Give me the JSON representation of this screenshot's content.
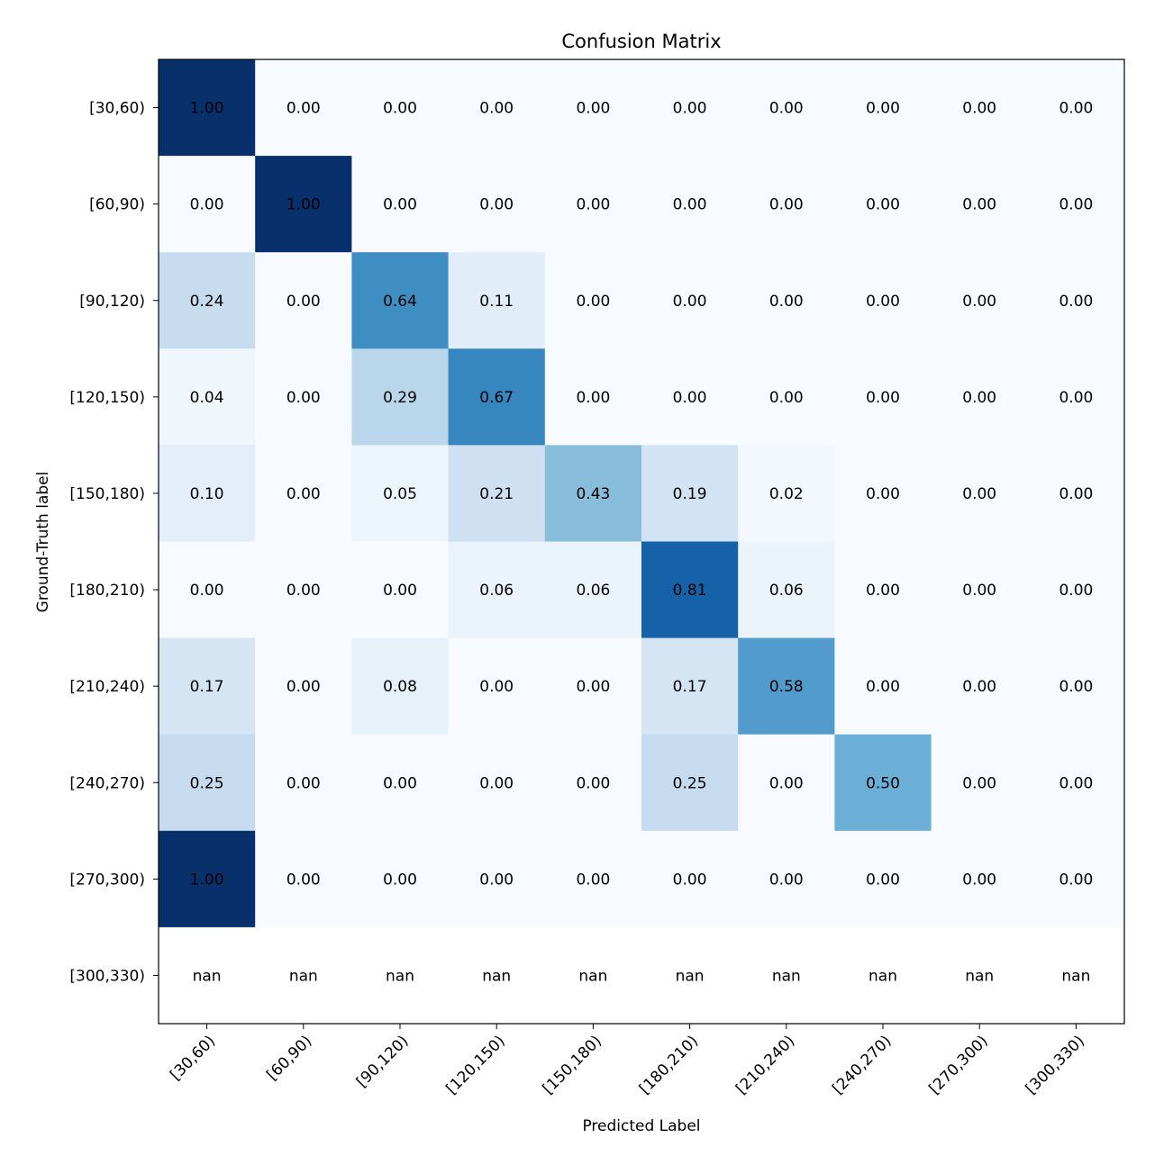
{
  "chart_data": {
    "type": "heatmap",
    "title": "Confusion Matrix",
    "xlabel": "Predicted Label",
    "ylabel": "Ground-Truth label",
    "x_categories": [
      "[30,60)",
      "[60,90)",
      "[90,120)",
      "[120,150)",
      "[150,180)",
      "[180,210)",
      "[210,240)",
      "[240,270)",
      "[270,300)",
      "[300,330)"
    ],
    "y_categories": [
      "[30,60)",
      "[60,90)",
      "[90,120)",
      "[120,150)",
      "[150,180)",
      "[180,210)",
      "[210,240)",
      "[240,270)",
      "[270,300)",
      "[300,330)"
    ],
    "values": [
      [
        "1.00",
        "0.00",
        "0.00",
        "0.00",
        "0.00",
        "0.00",
        "0.00",
        "0.00",
        "0.00",
        "0.00"
      ],
      [
        "0.00",
        "1.00",
        "0.00",
        "0.00",
        "0.00",
        "0.00",
        "0.00",
        "0.00",
        "0.00",
        "0.00"
      ],
      [
        "0.24",
        "0.00",
        "0.64",
        "0.11",
        "0.00",
        "0.00",
        "0.00",
        "0.00",
        "0.00",
        "0.00"
      ],
      [
        "0.04",
        "0.00",
        "0.29",
        "0.67",
        "0.00",
        "0.00",
        "0.00",
        "0.00",
        "0.00",
        "0.00"
      ],
      [
        "0.10",
        "0.00",
        "0.05",
        "0.21",
        "0.43",
        "0.19",
        "0.02",
        "0.00",
        "0.00",
        "0.00"
      ],
      [
        "0.00",
        "0.00",
        "0.00",
        "0.06",
        "0.06",
        "0.81",
        "0.06",
        "0.00",
        "0.00",
        "0.00"
      ],
      [
        "0.17",
        "0.00",
        "0.08",
        "0.00",
        "0.00",
        "0.17",
        "0.58",
        "0.00",
        "0.00",
        "0.00"
      ],
      [
        "0.25",
        "0.00",
        "0.00",
        "0.00",
        "0.00",
        "0.25",
        "0.00",
        "0.50",
        "0.00",
        "0.00"
      ],
      [
        "1.00",
        "0.00",
        "0.00",
        "0.00",
        "0.00",
        "0.00",
        "0.00",
        "0.00",
        "0.00",
        "0.00"
      ],
      [
        "nan",
        "nan",
        "nan",
        "nan",
        "nan",
        "nan",
        "nan",
        "nan",
        "nan",
        "nan"
      ]
    ],
    "colormap": "Blues",
    "value_range": [
      0,
      1
    ],
    "grid": false,
    "legend": "none"
  }
}
